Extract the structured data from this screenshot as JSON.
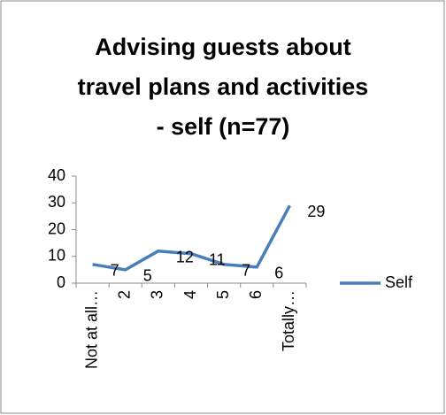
{
  "chart_data": {
    "type": "line",
    "title": "Advising guests about travel plans and activities - self (n=77)",
    "categories": [
      "Not at all…",
      "2",
      "3",
      "4",
      "5",
      "6",
      "Totally…"
    ],
    "series": [
      {
        "name": "Self",
        "color": "#4a7ebb",
        "values": [
          7,
          5,
          12,
          11,
          7,
          6,
          29
        ]
      }
    ],
    "ylim": [
      0,
      40
    ],
    "yticks": [
      0,
      10,
      20,
      30,
      40
    ],
    "grid": false,
    "legend": "right",
    "data_labels": true
  }
}
